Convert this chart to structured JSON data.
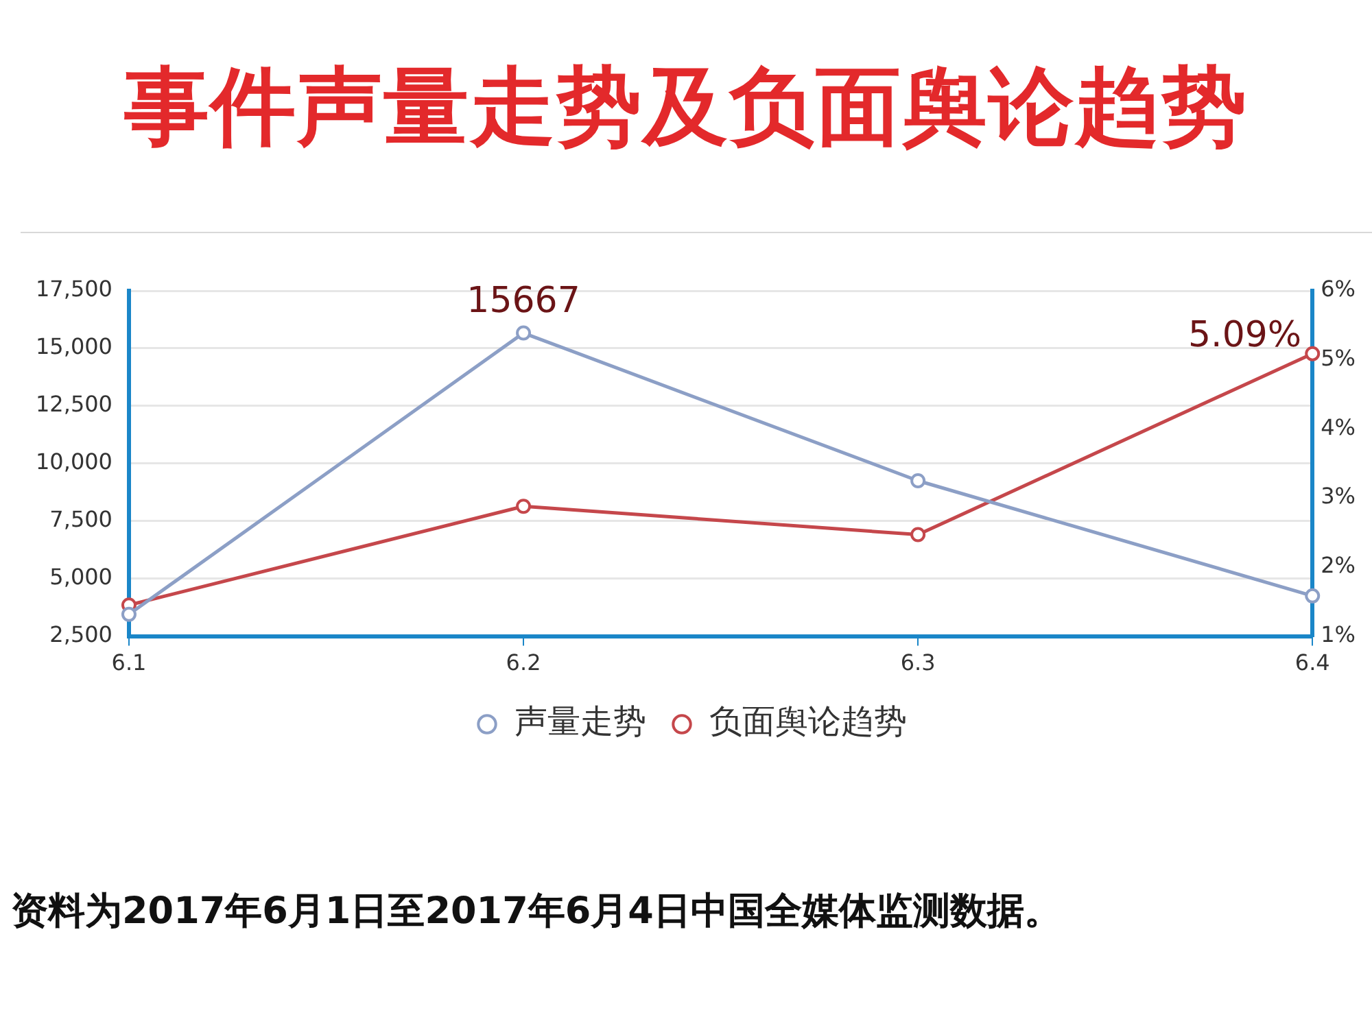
{
  "chart_data": {
    "type": "line",
    "title": "事件声量走势及负面舆论趋势",
    "categories": [
      "6.1",
      "6.2",
      "6.3",
      "6.4"
    ],
    "series": [
      {
        "name": "声量走势",
        "color": "#8c9fc6",
        "values": [
          3450,
          15667,
          9250,
          4250
        ],
        "value_labels": [
          null,
          "15667",
          null,
          null
        ]
      },
      {
        "name": "负面舆论趋势",
        "color": "#c5474b",
        "axis": "y2",
        "values": [
          1.45,
          2.88,
          2.47,
          5.09
        ],
        "value_labels": [
          null,
          null,
          null,
          "5.09%"
        ]
      }
    ],
    "ylim": [
      2500,
      17500
    ],
    "yticks": [
      {
        "value": 2500,
        "label": "2,500"
      },
      {
        "value": 5000,
        "label": "5,000"
      },
      {
        "value": 7500,
        "label": "7,500"
      },
      {
        "value": 10000,
        "label": "10,000"
      },
      {
        "value": 12500,
        "label": "12,500"
      },
      {
        "value": 15000,
        "label": "15,000"
      },
      {
        "value": 17500,
        "label": "17,500"
      }
    ],
    "y2lim": [
      1,
      6
    ],
    "y2ticks": [
      {
        "value": 1,
        "label": "1%"
      },
      {
        "value": 2,
        "label": "2%"
      },
      {
        "value": 3,
        "label": "3%"
      },
      {
        "value": 4,
        "label": "4%"
      },
      {
        "value": 5,
        "label": "5%"
      },
      {
        "value": 6,
        "label": "6%"
      }
    ],
    "grid": "y",
    "legend": "bottom",
    "marker": "circle",
    "line_style": "solid",
    "annotations": [
      "资料为2017年6月1日至2017年6月4日中国全媒体监测数据。"
    ]
  }
}
